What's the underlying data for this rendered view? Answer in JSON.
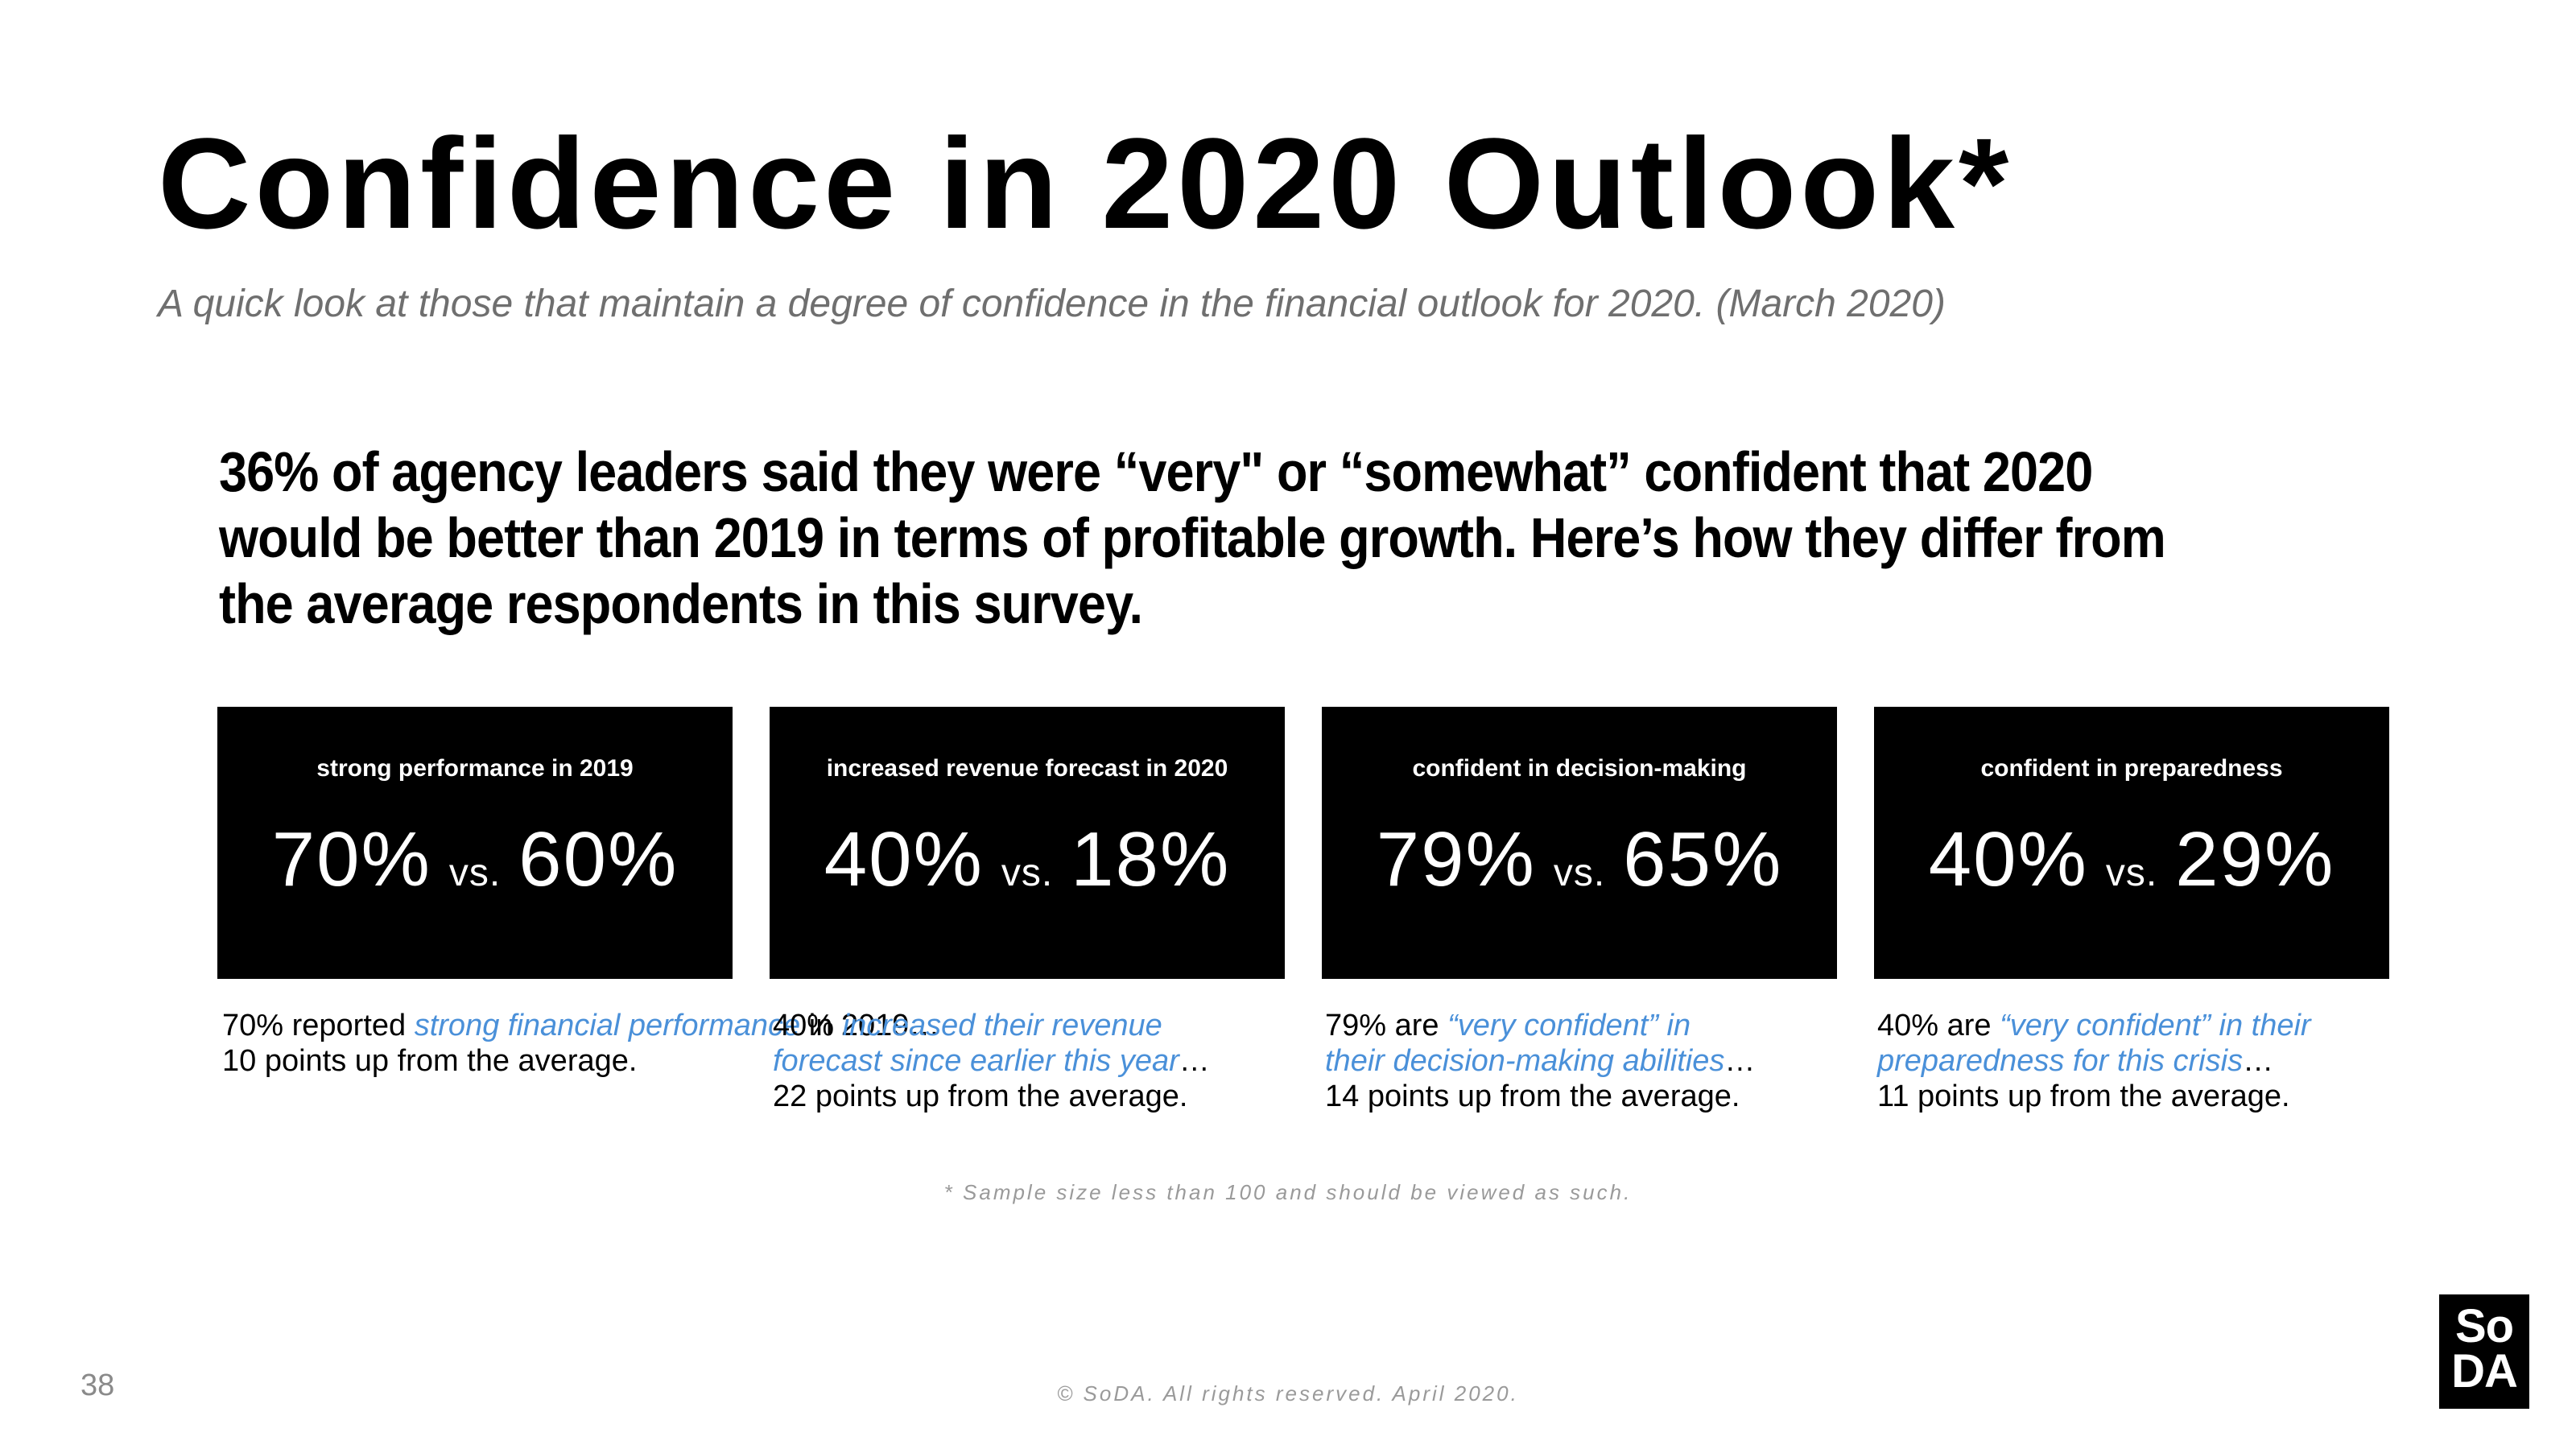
{
  "title": "Confidence in 2020 Outlook*",
  "subtitle": "A quick look at those that maintain a degree of confidence in the financial outlook for 2020. (March 2020)",
  "lead": "36% of agency leaders said they were “very\" or “somewhat” confident that 2020 would be better than 2019 in terms of profitable growth. Here’s how they differ from the average respondents in this survey.",
  "cards": [
    {
      "label": "strong performance in 2019",
      "confident": "70%",
      "vs": "vs.",
      "average": "60%",
      "note": {
        "pre": "70% reported ",
        "hl": "strong financial performance",
        "post": " in 2019…",
        "line3": "10 points up from the average."
      }
    },
    {
      "label": "increased revenue forecast in 2020",
      "confident": "40%",
      "vs": "vs.",
      "average": "18%",
      "note": {
        "pre": "40% ",
        "hl": "increased their revenue forecast since earlier this year",
        "post": "…",
        "line3": "22 points up from the average."
      }
    },
    {
      "label": "confident in decision-making",
      "confident": "79%",
      "vs": "vs.",
      "average": "65%",
      "note": {
        "pre": "79%  are ",
        "hl": "“very confident” in their decision-making abilities",
        "post": "…",
        "line3": "14 points up from the average."
      }
    },
    {
      "label": "confident in preparedness",
      "confident": "40%",
      "vs": "vs.",
      "average": "29%",
      "note": {
        "pre": "40% are ",
        "hl": "“very confident” in their preparedness for this crisis",
        "post": "…",
        "line3": "11 points up from the average."
      }
    }
  ],
  "footnote": "* Sample size less than 100 and should be viewed as such.",
  "copyright": "© SoDA. All rights reserved. April 2020.",
  "page_number": "38",
  "logo": {
    "line1": "So",
    "line2": "DA"
  },
  "colors": {
    "highlight": "#4a90d9",
    "card_bg": "#000000",
    "muted": "#9a9a9a"
  }
}
